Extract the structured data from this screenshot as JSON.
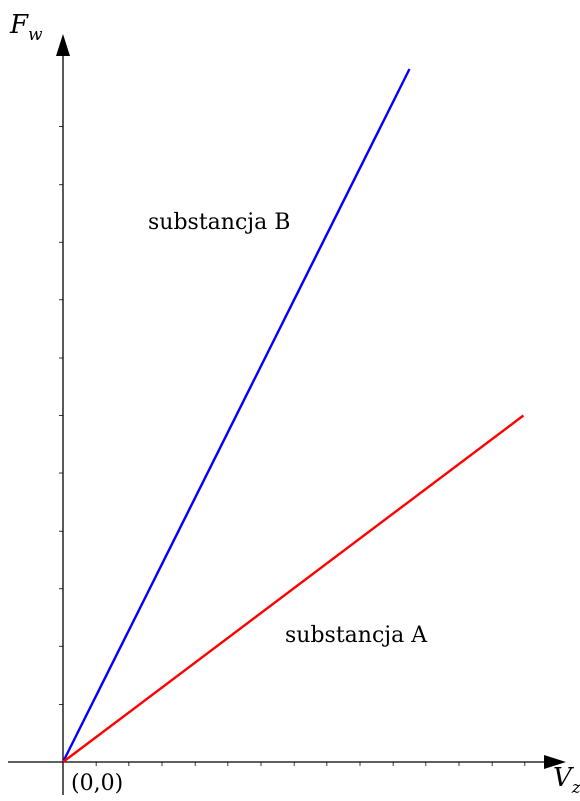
{
  "chart_data": {
    "type": "line",
    "title": "",
    "xlabel": "V",
    "xlabel_sub": "z",
    "ylabel": "F",
    "ylabel_sub": "w",
    "origin_label": "(0,0)",
    "xlim": [
      0,
      1.0
    ],
    "ylim": [
      0,
      1.0
    ],
    "grid": false,
    "x_ticks": [
      0.067,
      0.133,
      0.2,
      0.267,
      0.333,
      0.4,
      0.467,
      0.533,
      0.6,
      0.667,
      0.733,
      0.8,
      0.867,
      0.933
    ],
    "y_ticks": [
      0.083,
      0.167,
      0.25,
      0.333,
      0.417,
      0.5,
      0.583,
      0.667,
      0.75,
      0.833,
      0.917
    ],
    "series": [
      {
        "name": "substancja B",
        "color": "#0000ff",
        "x": [
          0,
          0.7
        ],
        "y": [
          0,
          1.0
        ]
      },
      {
        "name": "substancja A",
        "color": "#ff0000",
        "x": [
          0,
          0.93
        ],
        "y": [
          0,
          0.5
        ]
      }
    ]
  }
}
